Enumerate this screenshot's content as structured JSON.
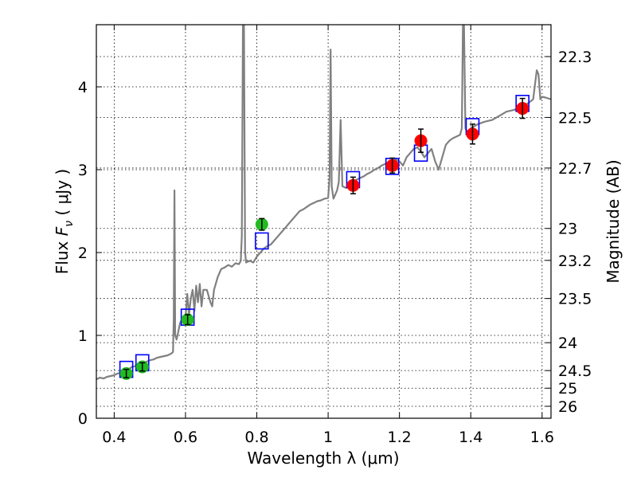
{
  "chart_data": {
    "type": "scatter",
    "xlabel": "Wavelength  λ (μm)",
    "ylabel_text": "Flux  ",
    "ylabel_symbol": "F",
    "ylabel_sub": "ν",
    "ylabel_unit": "  ( μJy )",
    "y2label": "Magnitude (AB)",
    "xlim": [
      0.35,
      1.625
    ],
    "ylim": [
      0,
      4.75
    ],
    "grid": true,
    "x_ticks": [
      0.4,
      0.6,
      0.8,
      1.0,
      1.2,
      1.4,
      1.6
    ],
    "x_tick_labels": [
      "0.4",
      "0.6",
      "0.8",
      "1",
      "1.2",
      "1.4",
      "1.6"
    ],
    "y_ticks": [
      0,
      1,
      2,
      3,
      4
    ],
    "y_tick_labels": [
      "0",
      "1",
      "2",
      "3",
      "4"
    ],
    "mag_ticks": [
      22.3,
      22.5,
      22.7,
      23,
      23.2,
      23.5,
      24,
      24.5,
      25,
      26
    ],
    "mag_tick_labels": [
      "22.3",
      "22.5",
      "22.7",
      "23",
      "23.2",
      "23.5",
      "24",
      "24.5",
      "25",
      "26"
    ],
    "colors": {
      "spectrum": "#808080",
      "model_box": "#0000ff",
      "green_points": "#22bb22",
      "red_points": "#ff0000",
      "errorbar": "#000000"
    },
    "spectrum": [
      [
        0.35,
        0.47
      ],
      [
        0.36,
        0.49
      ],
      [
        0.37,
        0.48
      ],
      [
        0.38,
        0.5
      ],
      [
        0.39,
        0.51
      ],
      [
        0.4,
        0.52
      ],
      [
        0.41,
        0.54
      ],
      [
        0.42,
        0.55
      ],
      [
        0.43,
        0.57
      ],
      [
        0.44,
        0.59
      ],
      [
        0.45,
        0.62
      ],
      [
        0.46,
        0.63
      ],
      [
        0.47,
        0.64
      ],
      [
        0.48,
        0.66
      ],
      [
        0.49,
        0.68
      ],
      [
        0.5,
        0.7
      ],
      [
        0.51,
        0.71
      ],
      [
        0.52,
        0.73
      ],
      [
        0.53,
        0.74
      ],
      [
        0.54,
        0.75
      ],
      [
        0.55,
        0.76
      ],
      [
        0.56,
        0.78
      ],
      [
        0.565,
        0.8
      ],
      [
        0.567,
        1.2
      ],
      [
        0.569,
        2.75
      ],
      [
        0.571,
        1.0
      ],
      [
        0.575,
        0.95
      ],
      [
        0.58,
        1.05
      ],
      [
        0.585,
        1.15
      ],
      [
        0.59,
        1.2
      ],
      [
        0.6,
        1.22
      ],
      [
        0.605,
        1.5
      ],
      [
        0.61,
        1.25
      ],
      [
        0.615,
        1.45
      ],
      [
        0.62,
        1.55
      ],
      [
        0.625,
        1.3
      ],
      [
        0.63,
        1.6
      ],
      [
        0.635,
        1.4
      ],
      [
        0.64,
        1.62
      ],
      [
        0.645,
        1.35
      ],
      [
        0.65,
        1.55
      ],
      [
        0.66,
        1.55
      ],
      [
        0.67,
        1.4
      ],
      [
        0.675,
        1.35
      ],
      [
        0.68,
        1.55
      ],
      [
        0.69,
        1.7
      ],
      [
        0.7,
        1.8
      ],
      [
        0.71,
        1.82
      ],
      [
        0.72,
        1.85
      ],
      [
        0.73,
        1.83
      ],
      [
        0.74,
        1.87
      ],
      [
        0.75,
        1.86
      ],
      [
        0.755,
        1.9
      ],
      [
        0.758,
        2.2
      ],
      [
        0.761,
        4.75
      ],
      [
        0.764,
        4.75
      ],
      [
        0.767,
        2.0
      ],
      [
        0.77,
        1.88
      ],
      [
        0.78,
        1.9
      ],
      [
        0.79,
        1.88
      ],
      [
        0.8,
        1.95
      ],
      [
        0.81,
        2.0
      ],
      [
        0.82,
        2.05
      ],
      [
        0.83,
        2.08
      ],
      [
        0.84,
        2.1
      ],
      [
        0.85,
        2.15
      ],
      [
        0.86,
        2.2
      ],
      [
        0.87,
        2.25
      ],
      [
        0.88,
        2.3
      ],
      [
        0.89,
        2.35
      ],
      [
        0.9,
        2.4
      ],
      [
        0.91,
        2.45
      ],
      [
        0.92,
        2.5
      ],
      [
        0.93,
        2.52
      ],
      [
        0.94,
        2.55
      ],
      [
        0.95,
        2.58
      ],
      [
        0.96,
        2.6
      ],
      [
        0.97,
        2.62
      ],
      [
        0.98,
        2.63
      ],
      [
        0.99,
        2.65
      ],
      [
        1.0,
        2.66
      ],
      [
        1.004,
        2.9
      ],
      [
        1.007,
        4.45
      ],
      [
        1.01,
        2.8
      ],
      [
        1.015,
        2.65
      ],
      [
        1.02,
        2.7
      ],
      [
        1.025,
        2.75
      ],
      [
        1.03,
        2.85
      ],
      [
        1.035,
        3.6
      ],
      [
        1.04,
        2.8
      ],
      [
        1.05,
        2.78
      ],
      [
        1.06,
        2.8
      ],
      [
        1.07,
        2.85
      ],
      [
        1.08,
        2.88
      ],
      [
        1.09,
        2.9
      ],
      [
        1.1,
        2.92
      ],
      [
        1.11,
        2.95
      ],
      [
        1.12,
        2.97
      ],
      [
        1.13,
        3.0
      ],
      [
        1.14,
        3.02
      ],
      [
        1.15,
        3.05
      ],
      [
        1.16,
        3.07
      ],
      [
        1.17,
        3.08
      ],
      [
        1.18,
        3.1
      ],
      [
        1.19,
        3.12
      ],
      [
        1.2,
        3.1
      ],
      [
        1.21,
        3.05
      ],
      [
        1.22,
        3.15
      ],
      [
        1.23,
        3.2
      ],
      [
        1.24,
        3.25
      ],
      [
        1.25,
        3.27
      ],
      [
        1.26,
        3.22
      ],
      [
        1.27,
        3.15
      ],
      [
        1.28,
        3.2
      ],
      [
        1.29,
        3.25
      ],
      [
        1.3,
        3.1
      ],
      [
        1.31,
        3.0
      ],
      [
        1.32,
        3.15
      ],
      [
        1.33,
        3.3
      ],
      [
        1.34,
        3.35
      ],
      [
        1.35,
        3.38
      ],
      [
        1.36,
        3.4
      ],
      [
        1.37,
        3.42
      ],
      [
        1.375,
        3.5
      ],
      [
        1.378,
        4.75
      ],
      [
        1.381,
        4.75
      ],
      [
        1.385,
        3.5
      ],
      [
        1.39,
        3.45
      ],
      [
        1.4,
        3.5
      ],
      [
        1.42,
        3.55
      ],
      [
        1.44,
        3.58
      ],
      [
        1.46,
        3.6
      ],
      [
        1.48,
        3.65
      ],
      [
        1.5,
        3.7
      ],
      [
        1.52,
        3.72
      ],
      [
        1.54,
        3.75
      ],
      [
        1.56,
        3.8
      ],
      [
        1.575,
        3.85
      ],
      [
        1.585,
        4.2
      ],
      [
        1.59,
        4.15
      ],
      [
        1.595,
        3.85
      ],
      [
        1.6,
        3.88
      ],
      [
        1.61,
        3.87
      ],
      [
        1.625,
        3.85
      ]
    ],
    "model_boxes": [
      {
        "x": 0.434,
        "y": 0.59
      },
      {
        "x": 0.479,
        "y": 0.67
      },
      {
        "x": 0.606,
        "y": 1.22
      },
      {
        "x": 0.814,
        "y": 2.14
      },
      {
        "x": 1.07,
        "y": 2.88
      },
      {
        "x": 1.18,
        "y": 3.04
      },
      {
        "x": 1.26,
        "y": 3.2
      },
      {
        "x": 1.405,
        "y": 3.52
      },
      {
        "x": 1.545,
        "y": 3.8
      }
    ],
    "series": [
      {
        "color": "green",
        "points": [
          {
            "x": 0.434,
            "y": 0.54,
            "err": 0.05
          },
          {
            "x": 0.479,
            "y": 0.62,
            "err": 0.05
          },
          {
            "x": 0.606,
            "y": 1.19,
            "err": 0.06
          },
          {
            "x": 0.814,
            "y": 2.34,
            "err": 0.07
          }
        ]
      },
      {
        "color": "red",
        "points": [
          {
            "x": 1.07,
            "y": 2.81,
            "err": 0.1
          },
          {
            "x": 1.18,
            "y": 3.05,
            "err": 0.09
          },
          {
            "x": 1.26,
            "y": 3.35,
            "err": 0.14
          },
          {
            "x": 1.405,
            "y": 3.43,
            "err": 0.12
          },
          {
            "x": 1.545,
            "y": 3.74,
            "err": 0.12
          }
        ]
      }
    ]
  }
}
